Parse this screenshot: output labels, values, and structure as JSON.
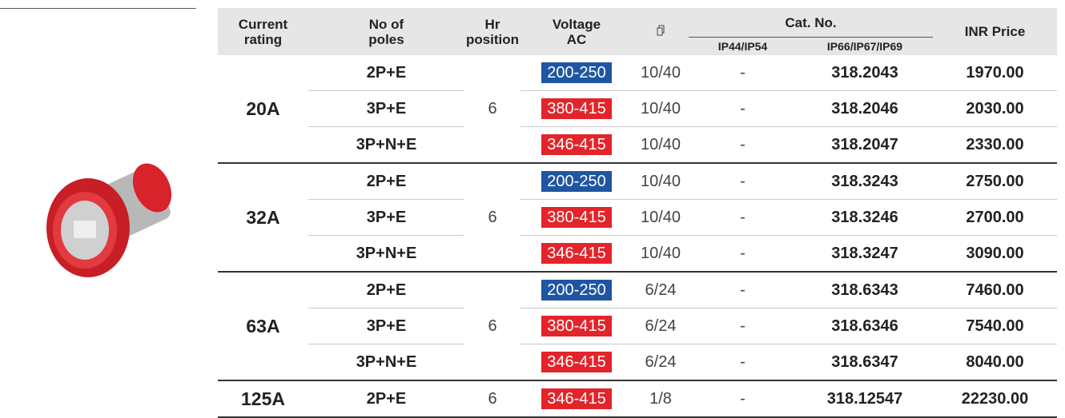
{
  "header": {
    "current_rating": [
      "Current",
      "rating"
    ],
    "poles": [
      "No of",
      "poles"
    ],
    "hr_position": [
      "Hr",
      "position"
    ],
    "voltage": [
      "Voltage",
      "AC"
    ],
    "cat_no": "Cat. No.",
    "ip44": "IP44/IP54",
    "ip66": "IP66/IP67/IP69",
    "price": "INR Price"
  },
  "groups": [
    {
      "rating": "20A",
      "hr_position": "6",
      "rows": [
        {
          "poles": "2P+E",
          "voltage": "200-250",
          "voltage_color": "#1f56a3",
          "ratio": "10/40",
          "ip44": "-",
          "ip66": "318.2043",
          "price": "1970.00"
        },
        {
          "poles": "3P+E",
          "voltage": "380-415",
          "voltage_color": "#e3242b",
          "ratio": "10/40",
          "ip44": "-",
          "ip66": "318.2046",
          "price": "2030.00"
        },
        {
          "poles": "3P+N+E",
          "voltage": "346-415",
          "voltage_color": "#e3242b",
          "ratio": "10/40",
          "ip44": "-",
          "ip66": "318.2047",
          "price": "2330.00"
        }
      ]
    },
    {
      "rating": "32A",
      "hr_position": "6",
      "rows": [
        {
          "poles": "2P+E",
          "voltage": "200-250",
          "voltage_color": "#1f56a3",
          "ratio": "10/40",
          "ip44": "-",
          "ip66": "318.3243",
          "price": "2750.00"
        },
        {
          "poles": "3P+E",
          "voltage": "380-415",
          "voltage_color": "#e3242b",
          "ratio": "10/40",
          "ip44": "-",
          "ip66": "318.3246",
          "price": "2700.00"
        },
        {
          "poles": "3P+N+E",
          "voltage": "346-415",
          "voltage_color": "#e3242b",
          "ratio": "10/40",
          "ip44": "-",
          "ip66": "318.3247",
          "price": "3090.00"
        }
      ]
    },
    {
      "rating": "63A",
      "hr_position": "6",
      "rows": [
        {
          "poles": "2P+E",
          "voltage": "200-250",
          "voltage_color": "#1f56a3",
          "ratio": "6/24",
          "ip44": "-",
          "ip66": "318.6343",
          "price": "7460.00"
        },
        {
          "poles": "3P+E",
          "voltage": "380-415",
          "voltage_color": "#e3242b",
          "ratio": "6/24",
          "ip44": "-",
          "ip66": "318.6346",
          "price": "7540.00"
        },
        {
          "poles": "3P+N+E",
          "voltage": "346-415",
          "voltage_color": "#e3242b",
          "ratio": "6/24",
          "ip44": "-",
          "ip66": "318.6347",
          "price": "8040.00"
        }
      ]
    },
    {
      "rating": "125A",
      "hr_position": "6",
      "rows": [
        {
          "poles": "2P+E",
          "voltage": "346-415",
          "voltage_color": "#e3242b",
          "ratio": "1/8",
          "ip44": "-",
          "ip66": "318.12547",
          "price": "22230.00"
        }
      ]
    }
  ]
}
